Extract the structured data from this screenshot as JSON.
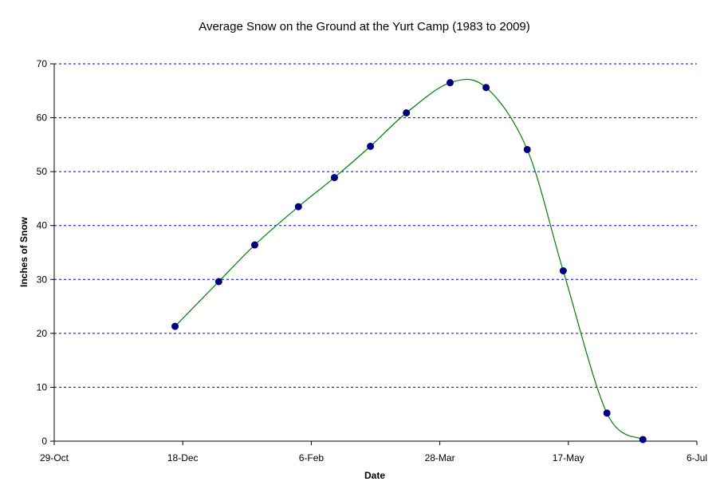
{
  "chart_data": {
    "type": "line",
    "title": "Average Snow on the Ground at the Yurt Camp (1983 to 2009)",
    "xlabel": "Date",
    "ylabel": "Inches of Snow",
    "x_tick_labels": [
      "29-Oct",
      "18-Dec",
      "6-Feb",
      "28-Mar",
      "17-May",
      "6-Jul"
    ],
    "x_tick_dates": [
      "Oct 29",
      "Dec 18",
      "Feb 6",
      "Mar 28",
      "May 17",
      "Jul 6"
    ],
    "ylim": [
      0,
      70
    ],
    "yticks": [
      0,
      10,
      20,
      30,
      40,
      50,
      60,
      70
    ],
    "grid": "horizontal dashed",
    "series": [
      {
        "marker_color": "#000080",
        "line_color": "#008000",
        "smooth": true,
        "points": [
          {
            "date": "Dec 15",
            "value": 21.3
          },
          {
            "date": "Jan 1",
            "value": 29.6
          },
          {
            "date": "Jan 15",
            "value": 36.4
          },
          {
            "date": "Feb 1",
            "value": 43.5
          },
          {
            "date": "Feb 15",
            "value": 48.9
          },
          {
            "date": "Mar 1",
            "value": 54.7
          },
          {
            "date": "Mar 15",
            "value": 60.9
          },
          {
            "date": "Apr 1",
            "value": 66.5
          },
          {
            "date": "Apr 15",
            "value": 65.6
          },
          {
            "date": "May 1",
            "value": 54.1
          },
          {
            "date": "May 15",
            "value": 31.6
          },
          {
            "date": "Jun 1",
            "value": 5.2
          },
          {
            "date": "Jun 15",
            "value": 0.3
          }
        ]
      }
    ]
  }
}
